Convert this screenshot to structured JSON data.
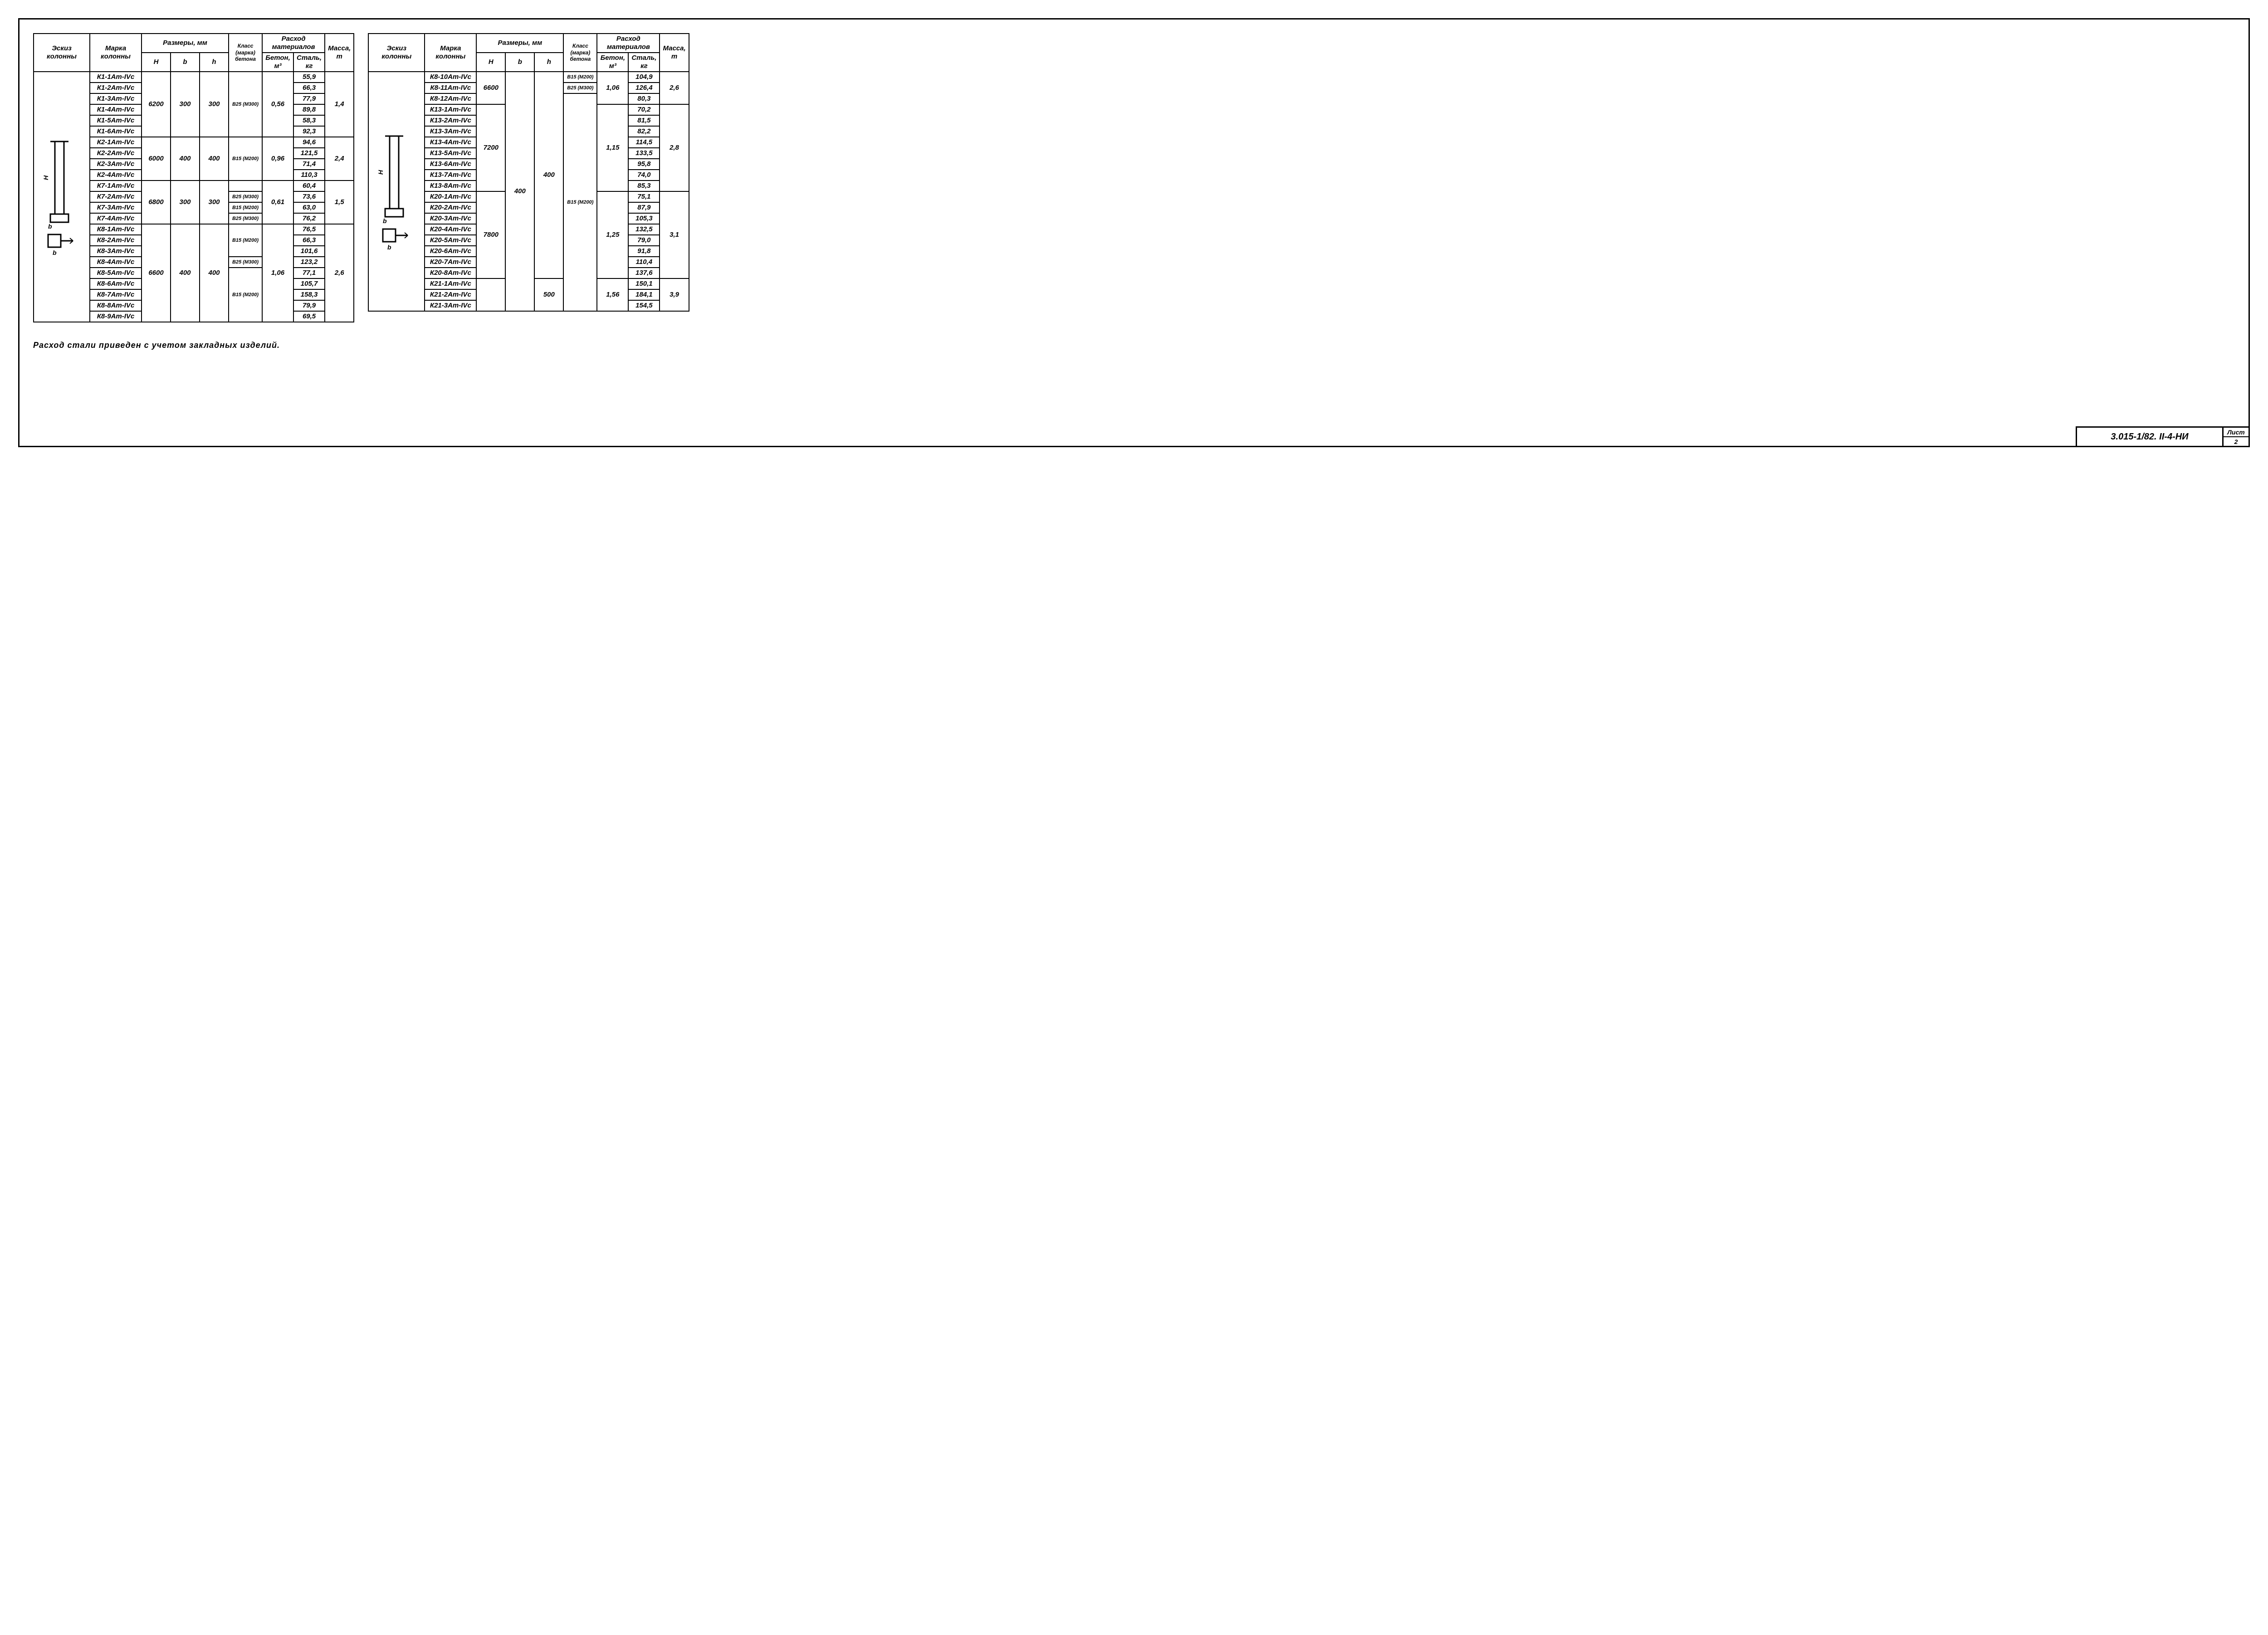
{
  "headers": {
    "eskiz": "Эскиз колонны",
    "marka": "Марка колонны",
    "razmery": "Размеры, мм",
    "H": "H",
    "b": "b",
    "h": "h",
    "klass": "Класс (марка) бетона",
    "rashod": "Расход материалов",
    "beton": "Бетон, м³",
    "stal": "Сталь, кг",
    "massa": "Масса, т"
  },
  "note": "Расход стали приведен с учетом закладных изделий.",
  "docnum": "3.015-1/82. II-4-НИ",
  "sheet_label": "Лист",
  "sheet_num": "2",
  "groups_left": [
    {
      "H": "6200",
      "b": "300",
      "h": "300",
      "klass": "В25 (М300)",
      "beton": "0,56",
      "massa": "1,4",
      "rows": [
        {
          "marka": "К1-1Ат-IVс",
          "stal": "55,9"
        },
        {
          "marka": "К1-2Ат-IVс",
          "stal": "66,3"
        },
        {
          "marka": "К1-3Ат-IVс",
          "stal": "77,9"
        },
        {
          "marka": "К1-4Ат-IVс",
          "stal": "89,8"
        },
        {
          "marka": "К1-5Ат-IVс",
          "stal": "58,3"
        },
        {
          "marka": "К1-6Ат-IVс",
          "stal": "92,3"
        }
      ]
    },
    {
      "H": "6000",
      "b": "400",
      "h": "400",
      "klass": "В15 (М200)",
      "beton": "0,96",
      "massa": "2,4",
      "rows": [
        {
          "marka": "К2-1Ат-IVс",
          "stal": "94,6"
        },
        {
          "marka": "К2-2Ат-IVс",
          "stal": "121,5"
        },
        {
          "marka": "К2-3Ат-IVс",
          "stal": "71,4"
        },
        {
          "marka": "К2-4Ат-IVс",
          "stal": "110,3"
        }
      ]
    },
    {
      "H": "6800",
      "b": "300",
      "h": "300",
      "beton": "0,61",
      "massa": "1,5",
      "rows": [
        {
          "marka": "К7-1Ат-IVс",
          "stal": "60,4",
          "klass": ""
        },
        {
          "marka": "К7-2Ат-IVс",
          "stal": "73,6",
          "klass": "В25 (М300)"
        },
        {
          "marka": "К7-3Ат-IVс",
          "stal": "63,0",
          "klass": "В15 (М200)"
        },
        {
          "marka": "К7-4Ат-IVс",
          "stal": "76,2",
          "klass": "В25 (М300)"
        }
      ],
      "per_row_klass": true
    },
    {
      "H": "6600",
      "b": "400",
      "h": "400",
      "beton": "1,06",
      "massa": "2,6",
      "rows": [
        {
          "marka": "К8-1Ат-IVс",
          "stal": "76,5",
          "klass": "В15 (М200)",
          "klass_span": 3
        },
        {
          "marka": "К8-2Ат-IVс",
          "stal": "66,3"
        },
        {
          "marka": "К8-3Ат-IVс",
          "stal": "101,6"
        },
        {
          "marka": "К8-4Ат-IVс",
          "stal": "123,2",
          "klass": "В25 (М300)",
          "klass_span": 1
        },
        {
          "marka": "К8-5Ат-IVс",
          "stal": "77,1",
          "klass": "В15 (М200)",
          "klass_span": 5
        },
        {
          "marka": "К8-6Ат-IVс",
          "stal": "105,7"
        },
        {
          "marka": "К8-7Ат-IVс",
          "stal": "158,3"
        },
        {
          "marka": "К8-8Ат-IVс",
          "stal": "79,9"
        },
        {
          "marka": "К8-9Ат-IVс",
          "stal": "69,5"
        }
      ],
      "per_row_klass": true
    }
  ],
  "groups_right": [
    {
      "H": "6600",
      "b_span_all": true,
      "beton": "1,06",
      "massa": "2,6",
      "rows": [
        {
          "marka": "К8-10Ат-IVс",
          "stal": "104,9",
          "klass": "В15 (М200)",
          "klass_span": 1
        },
        {
          "marka": "К8-11Ат-IVс",
          "stal": "126,4",
          "klass": "В25 (М300)",
          "klass_span": 1
        },
        {
          "marka": "К8-12Ат-IVс",
          "stal": "80,3",
          "klass": "",
          "klass_skip": true
        }
      ],
      "per_row_klass": true
    },
    {
      "H": "7200",
      "beton": "1,15",
      "massa": "2,8",
      "rows": [
        {
          "marka": "К13-1Ат-IVс",
          "stal": "70,2"
        },
        {
          "marka": "К13-2Ат-IVс",
          "stal": "81,5"
        },
        {
          "marka": "К13-3Ат-IVс",
          "stal": "82,2"
        },
        {
          "marka": "К13-4Ат-IVс",
          "stal": "114,5"
        },
        {
          "marka": "К13-5Ат-IVс",
          "stal": "133,5"
        },
        {
          "marka": "К13-6Ат-IVс",
          "stal": "95,8"
        },
        {
          "marka": "К13-7Ат-IVс",
          "stal": "74,0"
        },
        {
          "marka": "К13-8Ат-IVс",
          "stal": "85,3"
        }
      ]
    },
    {
      "H": "7800",
      "beton": "1,25",
      "massa": "3,1",
      "rows": [
        {
          "marka": "К20-1Ат-IVс",
          "stal": "75,1"
        },
        {
          "marka": "К20-2Ат-IVс",
          "stal": "87,9"
        },
        {
          "marka": "К20-3Ат-IVс",
          "stal": "105,3"
        },
        {
          "marka": "К20-4Ат-IVс",
          "stal": "132,5"
        },
        {
          "marka": "К20-5Ат-IVс",
          "stal": "79,0"
        },
        {
          "marka": "К20-6Ат-IVс",
          "stal": "91,8"
        },
        {
          "marka": "К20-7Ат-IVс",
          "stal": "110,4"
        },
        {
          "marka": "К20-8Ат-IVс",
          "stal": "137,6"
        }
      ]
    },
    {
      "H": "",
      "h_override": "500",
      "beton": "1,56",
      "massa": "3,9",
      "rows": [
        {
          "marka": "К21-1Ат-IVс",
          "stal": "150,1"
        },
        {
          "marka": "К21-2Ат-IVс",
          "stal": "184,1"
        },
        {
          "marka": "К21-3Ат-IVс",
          "stal": "154,5"
        }
      ]
    }
  ],
  "right_shared": {
    "b": "400",
    "h": "400",
    "klass": "В15 (М200)"
  }
}
